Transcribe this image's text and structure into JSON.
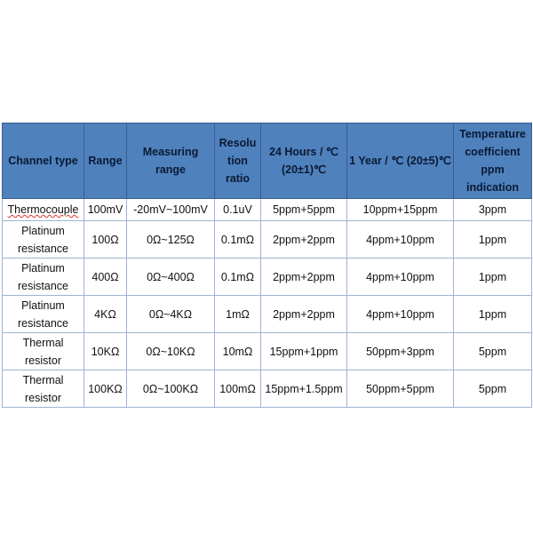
{
  "table": {
    "headers": [
      "Channel type",
      "Range",
      "Measuring range",
      "Resolu tion ratio",
      "24 Hours / ℃ (20±1)℃",
      "1 Year / ℃ (20±5)℃",
      "Temperature coefficient ppm indication"
    ],
    "rows": [
      [
        "Thermocouple",
        "100mV",
        "-20mV~100mV",
        "0.1uV",
        "5ppm+5ppm",
        "10ppm+15ppm",
        "3ppm"
      ],
      [
        "Platinum resistance",
        "100Ω",
        "0Ω~125Ω",
        "0.1mΩ",
        "2ppm+2ppm",
        "4ppm+10ppm",
        "1ppm"
      ],
      [
        "Platinum resistance",
        "400Ω",
        "0Ω~400Ω",
        "0.1mΩ",
        "2ppm+2ppm",
        "4ppm+10ppm",
        "1ppm"
      ],
      [
        "Platinum resistance",
        "4KΩ",
        "0Ω~4KΩ",
        "1mΩ",
        "2ppm+2ppm",
        "4ppm+10ppm",
        "1ppm"
      ],
      [
        "Thermal resistor",
        "10KΩ",
        "0Ω~10KΩ",
        "10mΩ",
        "15ppm+1ppm",
        "50ppm+3ppm",
        "5ppm"
      ],
      [
        "Thermal resistor",
        "100KΩ",
        "0Ω~100KΩ",
        "100mΩ",
        "15ppm+1.5ppm",
        "50ppm+5ppm",
        "5ppm"
      ]
    ]
  },
  "colors": {
    "header_bg": "#4f81bd",
    "border": "#9db3d6"
  }
}
